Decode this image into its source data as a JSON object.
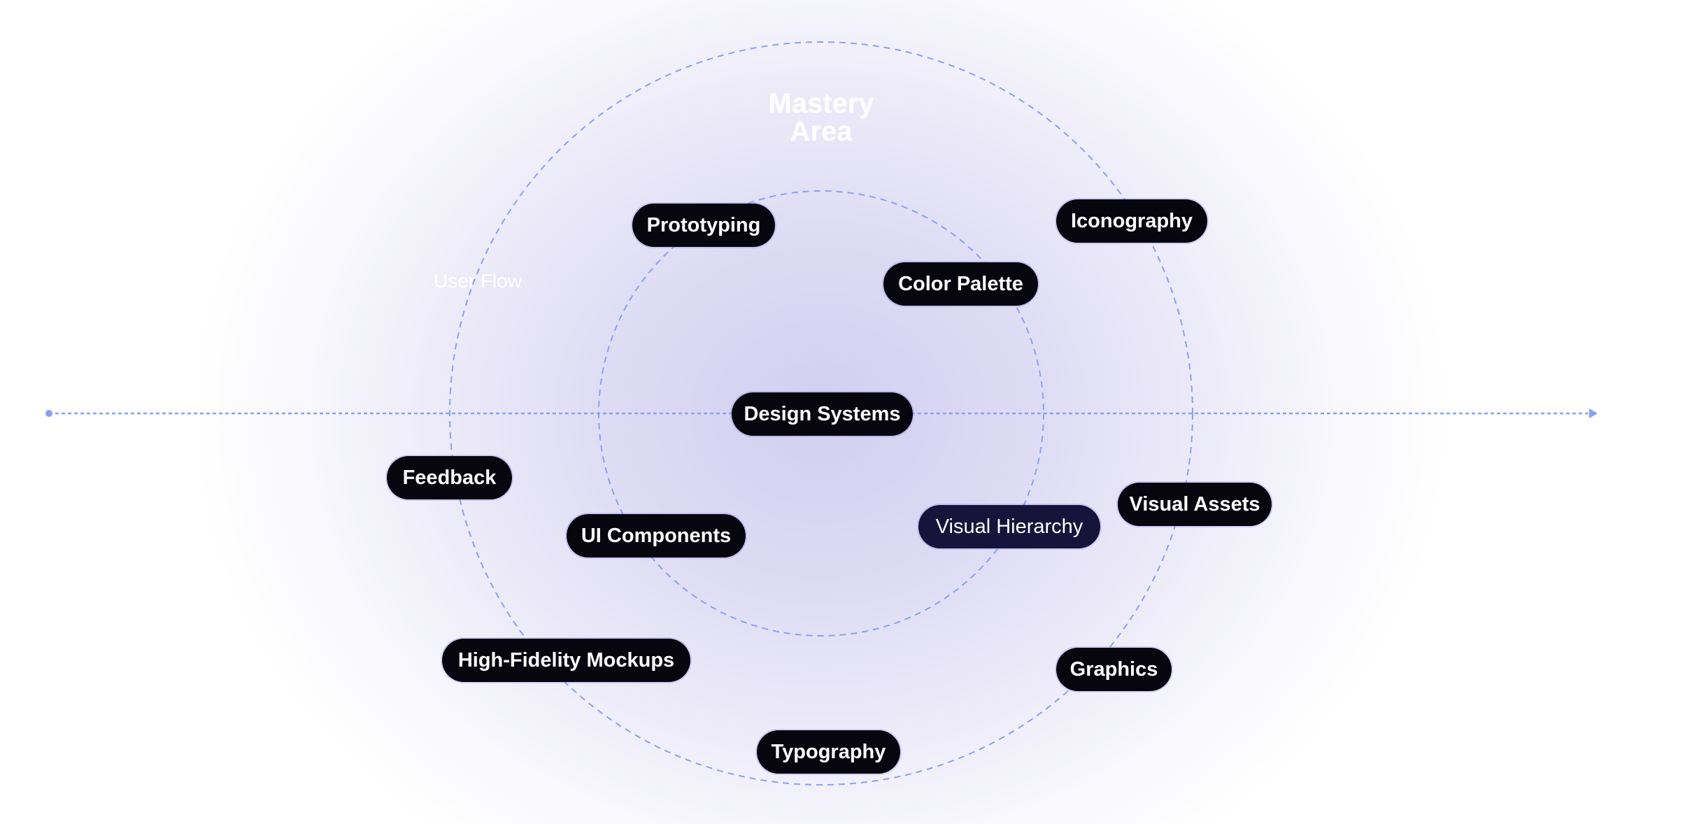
{
  "title": {
    "line1": "Mastery",
    "line2": "Area"
  },
  "ring_label": "User Flow",
  "nodes": [
    {
      "label": "Prototyping"
    },
    {
      "label": "Iconography"
    },
    {
      "label": "Color Palette"
    },
    {
      "label": "Design Systems"
    },
    {
      "label": "Feedback"
    },
    {
      "label": "UI Components"
    },
    {
      "label": "Visual Hierarchy"
    },
    {
      "label": "Visual Assets"
    },
    {
      "label": "High-Fidelity Mockups"
    },
    {
      "label": "Graphics"
    },
    {
      "label": "Typography"
    }
  ],
  "colors": {
    "line": "#7f9cf5",
    "pill": "#07060f",
    "pill_alt": "#16143a",
    "glow": "#d2cff0"
  }
}
